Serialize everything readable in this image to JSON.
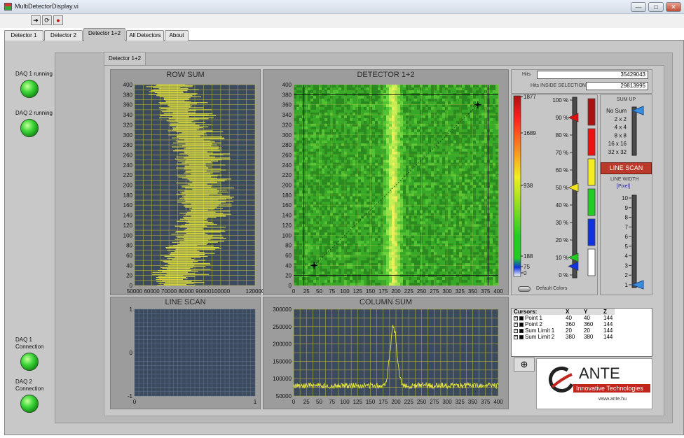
{
  "window": {
    "title": "MultiDetectorDisplay.vi",
    "min_label": "—",
    "max_label": "□",
    "close_label": "✕"
  },
  "toolbar": {
    "run_icon": "run-arrow-icon",
    "run_cont_icon": "run-continuously-icon",
    "abort_icon": "abort-icon"
  },
  "tabs": [
    {
      "label": "Detector 1"
    },
    {
      "label": "Detector 2"
    },
    {
      "label": "Detector 1+2"
    },
    {
      "label": "All Detectors"
    },
    {
      "label": "About"
    }
  ],
  "inner_tab": {
    "label": "Detector 1+2"
  },
  "status": {
    "daq1_running": "DAQ 1 running",
    "daq2_running": "DAQ 2 running",
    "daq1_connection": "DAQ 1 Connection",
    "daq2_connection": "DAQ 2 Connection",
    "led_color": "#3ed83a"
  },
  "row_sum": {
    "title": "ROW SUM",
    "y_ticks": [
      "0",
      "20",
      "40",
      "60",
      "80",
      "100",
      "120",
      "140",
      "160",
      "180",
      "200",
      "220",
      "240",
      "260",
      "280",
      "300",
      "320",
      "340",
      "360",
      "380",
      "400"
    ],
    "x_ticks": [
      "50000",
      "60000",
      "70000",
      "80000",
      "90000",
      "100000",
      "120000"
    ]
  },
  "detector": {
    "title": "DETECTOR 1+2",
    "y_ticks": [
      "0",
      "20",
      "40",
      "60",
      "80",
      "100",
      "120",
      "140",
      "160",
      "180",
      "200",
      "220",
      "240",
      "260",
      "280",
      "300",
      "320",
      "340",
      "360",
      "380",
      "400"
    ],
    "x_ticks": [
      "0",
      "25",
      "50",
      "75",
      "100",
      "125",
      "150",
      "175",
      "200",
      "225",
      "250",
      "275",
      "300",
      "325",
      "350",
      "375",
      "400"
    ]
  },
  "line_scan": {
    "title": "LINE SCAN",
    "y_ticks": [
      "-1",
      "0",
      "1"
    ],
    "x_ticks": [
      "0",
      "1"
    ]
  },
  "column_sum": {
    "title": "COLUMN SUM",
    "y_ticks": [
      "50000",
      "100000",
      "150000",
      "200000",
      "250000",
      "300000"
    ],
    "x_ticks": [
      "0",
      "25",
      "50",
      "75",
      "100",
      "125",
      "150",
      "175",
      "200",
      "225",
      "250",
      "275",
      "300",
      "325",
      "350",
      "375",
      "400"
    ]
  },
  "chart_data": [
    {
      "type": "line",
      "title": "ROW SUM",
      "xlim": [
        50000,
        120000
      ],
      "ylim": [
        0,
        400
      ],
      "series_color": "#e6e63a",
      "x_profile_by_row": [
        [
          0,
          72000
        ],
        [
          40,
          75000
        ],
        [
          80,
          82000
        ],
        [
          120,
          86000
        ],
        [
          160,
          88000
        ],
        [
          200,
          88000
        ],
        [
          240,
          87000
        ],
        [
          280,
          85000
        ],
        [
          320,
          80000
        ],
        [
          360,
          74000
        ],
        [
          400,
          68000
        ]
      ]
    },
    {
      "type": "heatmap",
      "title": "DETECTOR 1+2",
      "xlim": [
        0,
        400
      ],
      "ylim": [
        0,
        400
      ],
      "band_center_x": 195,
      "color_scale_ticks": [
        "1877",
        "1689",
        "938",
        "188",
        "75",
        "0"
      ]
    },
    {
      "type": "line",
      "title": "LINE SCAN",
      "xlim": [
        0,
        1
      ],
      "ylim": [
        -1,
        1
      ]
    },
    {
      "type": "line",
      "title": "COLUMN SUM",
      "xlim": [
        0,
        400
      ],
      "ylim": [
        50000,
        300000
      ],
      "series_color": "#e6e63a",
      "baseline": 80000,
      "peak": {
        "x": 195,
        "y": 270000
      }
    }
  ],
  "hits": {
    "label": "Hits",
    "value": "35429043",
    "inside_label": "Hits INSIDE SELECTION:",
    "inside_value": "29813995"
  },
  "color_scale": {
    "percent_ticks": [
      "100 %",
      "90 %",
      "80 %",
      "70 %",
      "60 %",
      "50 %",
      "40 %",
      "30 %",
      "20 %",
      "10 %",
      "0 %"
    ],
    "swatches": [
      "#aa1111",
      "#ee1111",
      "#f2ee22",
      "#22cc22",
      "#1133dd",
      "#ffffff"
    ],
    "default_colors_label": "Default Colors"
  },
  "sum_up": {
    "label": "SUM UP",
    "options": [
      "No Sum",
      "2 x 2",
      "4 x 4",
      "8 x 8",
      "16 x 16",
      "32 x 32"
    ]
  },
  "line_scan_button": {
    "label": "LINE SCAN"
  },
  "line_width": {
    "label": "LINE WIDTH",
    "unit": "[Pixel]",
    "ticks": [
      "10",
      "9",
      "8",
      "7",
      "6",
      "5",
      "4",
      "3",
      "2",
      "1"
    ]
  },
  "cursors": {
    "headers": [
      "Cursors:",
      "X",
      "Y",
      "Z"
    ],
    "rows": [
      {
        "name": "Point 1",
        "x": "40",
        "y": "40",
        "z": "144"
      },
      {
        "name": "Point 2",
        "x": "360",
        "y": "360",
        "z": "144"
      },
      {
        "name": "Sum Limit 1",
        "x": "20",
        "y": "20",
        "z": "144"
      },
      {
        "name": "Sum Limit 2",
        "x": "380",
        "y": "380",
        "z": "144"
      }
    ]
  },
  "logo": {
    "name": "ANTE",
    "tagline": "Innovative Technologies",
    "url": "www.ante.hu"
  }
}
